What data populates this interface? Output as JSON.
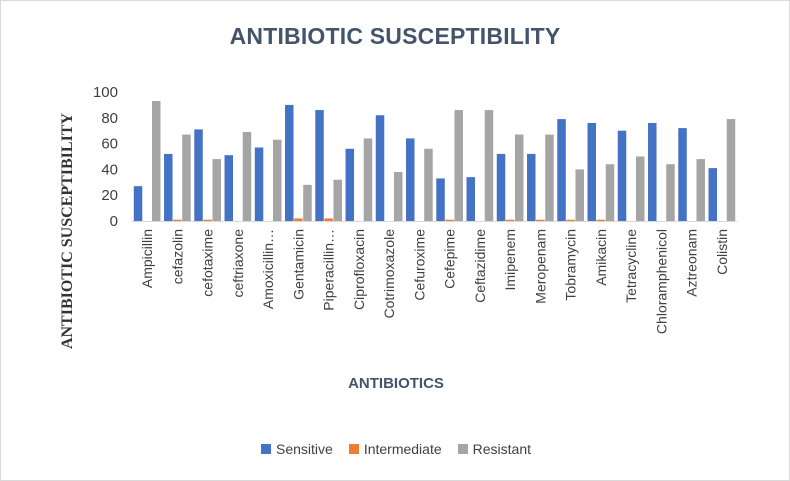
{
  "chart_data": {
    "type": "bar",
    "title": "ANTIBIOTIC SUSCEPTIBILITY",
    "xlabel": "ANTIBIOTICS",
    "ylabel": "ANTIBIOTIC SUSCEPTIBILITY",
    "ylim": [
      0,
      100
    ],
    "yticks": [
      0,
      20,
      40,
      60,
      80,
      100
    ],
    "grid": false,
    "legend_position": "bottom",
    "categories": [
      "Ampicillin",
      "cefazolin",
      "cefotaxime",
      "ceftriaxone",
      "Amoxicillin…",
      "Gentamicin",
      "Piperacillin…",
      "Ciprofloxacin",
      "Cotrimoxazole",
      "Cefuroxime",
      "Cefepime",
      "Ceftazidime",
      "Imipenem",
      "Meropenam",
      "Tobramycin",
      "Amikacin",
      "Tetracycline",
      "Chloramphenicol",
      "Aztreonam",
      "Colistin"
    ],
    "series": [
      {
        "name": "Sensitive",
        "color": "#4472c4",
        "values": [
          27,
          52,
          71,
          51,
          57,
          90,
          86,
          56,
          82,
          64,
          33,
          34,
          52,
          52,
          79,
          76,
          70,
          76,
          72,
          41
        ]
      },
      {
        "name": "Intermediate",
        "color": "#ed7d31",
        "values": [
          0,
          1,
          1,
          0,
          0,
          2,
          2,
          0,
          0,
          0,
          1,
          0,
          1,
          1,
          1,
          1,
          0,
          0,
          0,
          0
        ]
      },
      {
        "name": "Resistant",
        "color": "#a5a5a5",
        "values": [
          93,
          67,
          48,
          69,
          63,
          28,
          32,
          64,
          38,
          56,
          86,
          86,
          67,
          67,
          40,
          44,
          50,
          44,
          48,
          79
        ]
      }
    ]
  }
}
